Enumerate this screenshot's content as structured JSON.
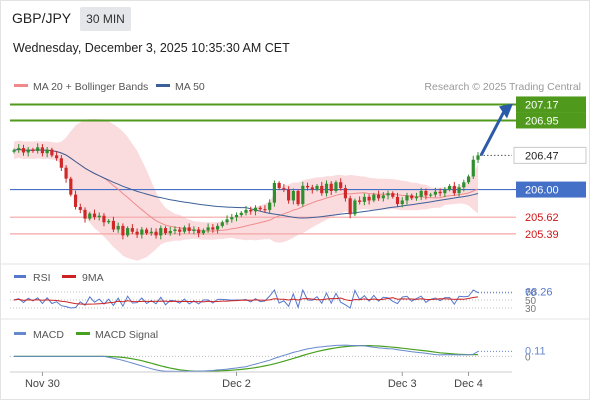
{
  "header": {
    "symbol": "GBP/JPY",
    "timeframe": "30 MIN",
    "datetime": "Wednesday, December 3, 2025 10:35:30 AM CET"
  },
  "legend_main": [
    {
      "label": "MA 20 + Bollinger Bands",
      "color": "#f08a8a"
    },
    {
      "label": "MA 50",
      "color": "#3b5f98"
    }
  ],
  "copyright": "Research © 2025 Trading Central",
  "colors": {
    "green": "#4f9a1c",
    "blue": "#4470c8",
    "red": "#f4a6a6",
    "red_text": "#d01515",
    "band": "#fadadd",
    "candle_up": "#2f8f2f",
    "candle_down": "#d02828",
    "arrow": "#2b5aa8",
    "rsi": "#5577cc",
    "rsi_ma": "#cc2222",
    "macd": "#6688cc",
    "macd_signal": "#48a020"
  },
  "chart_data": [
    {
      "type": "candlestick",
      "name": "price",
      "x_labels": [
        "Nov 30",
        "Dec 2",
        "Dec 3",
        "Dec 4"
      ],
      "ylim": [
        205.1,
        207.3
      ],
      "levels": [
        {
          "value": 207.17,
          "kind": "resistance",
          "color": "green"
        },
        {
          "value": 206.95,
          "kind": "resistance",
          "color": "green"
        },
        {
          "value": 206.47,
          "kind": "last",
          "color": "dark"
        },
        {
          "value": 206.0,
          "kind": "pivot",
          "color": "blue"
        },
        {
          "value": 205.62,
          "kind": "support",
          "color": "red"
        },
        {
          "value": 205.39,
          "kind": "support",
          "color": "red"
        }
      ],
      "closes": [
        206.54,
        206.57,
        206.51,
        206.55,
        206.53,
        206.58,
        206.5,
        206.55,
        206.47,
        206.43,
        206.3,
        206.15,
        205.93,
        205.76,
        205.72,
        205.6,
        205.67,
        205.62,
        205.64,
        205.55,
        205.57,
        205.45,
        205.5,
        205.37,
        205.47,
        205.42,
        205.38,
        205.45,
        205.4,
        205.42,
        205.37,
        205.47,
        205.4,
        205.43,
        205.45,
        205.42,
        205.48,
        205.43,
        205.45,
        205.4,
        205.44,
        205.48,
        205.45,
        205.5,
        205.55,
        205.59,
        205.62,
        205.65,
        205.68,
        205.72,
        205.7,
        205.75,
        205.73,
        205.72,
        205.82,
        206.09,
        206.02,
        206.0,
        205.85,
        205.98,
        205.8,
        206.05,
        206.03,
        206.0,
        206.05,
        205.95,
        206.08,
        205.98,
        206.1,
        206.02,
        205.88,
        205.66,
        205.85,
        205.83,
        205.9,
        205.85,
        205.93,
        205.88,
        205.92,
        205.95,
        205.9,
        205.8,
        205.85,
        205.92,
        205.88,
        205.9,
        205.98,
        205.92,
        205.93,
        205.97,
        205.95,
        206.0,
        206.05,
        205.95,
        206.03,
        206.1,
        206.18,
        206.41,
        206.47
      ],
      "rsi": {
        "value": 68.26,
        "levels": [
          30,
          50,
          70
        ]
      },
      "macd": {
        "value": 0.11,
        "zero_label": "0"
      }
    }
  ],
  "panels": {
    "rsi_legend": [
      {
        "label": "RSI",
        "color": "rsi"
      },
      {
        "label": "9MA",
        "color": "rsi_ma"
      }
    ],
    "macd_legend": [
      {
        "label": "MACD",
        "color": "macd"
      },
      {
        "label": "MACD Signal",
        "color": "macd_signal"
      }
    ]
  }
}
